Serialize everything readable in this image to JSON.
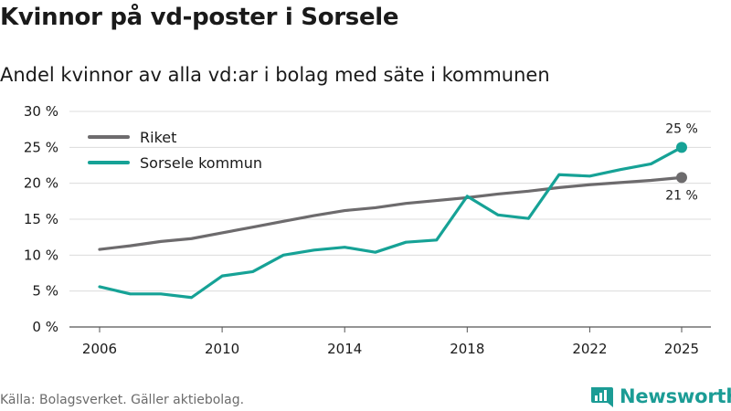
{
  "title": "Kvinnor på vd-poster i Sorsele",
  "subtitle": "Andel kvinnor av alla vd:ar i bolag med säte i kommunen",
  "source": "Källa: Bolagsverket. Gäller aktiebolag.",
  "brand": "Newsworthy",
  "colors": {
    "riket": "#6d6b6d",
    "sorsele": "#16a296",
    "grid": "#dcdcdc",
    "brand": "#1b9c95"
  },
  "chart_data": {
    "type": "line",
    "x": [
      2006,
      2007,
      2008,
      2009,
      2010,
      2011,
      2012,
      2013,
      2014,
      2015,
      2016,
      2017,
      2018,
      2019,
      2020,
      2021,
      2022,
      2023,
      2024,
      2025
    ],
    "series": [
      {
        "name": "Riket",
        "values": [
          10.8,
          11.3,
          11.9,
          12.3,
          13.1,
          13.9,
          14.7,
          15.5,
          16.2,
          16.6,
          17.2,
          17.6,
          18.0,
          18.5,
          18.9,
          19.4,
          19.8,
          20.1,
          20.4,
          20.8
        ]
      },
      {
        "name": "Sorsele kommun",
        "values": [
          5.6,
          4.6,
          4.6,
          4.1,
          7.1,
          7.7,
          10.0,
          10.7,
          11.1,
          10.4,
          11.8,
          12.1,
          18.2,
          15.6,
          15.1,
          21.2,
          21.0,
          21.9,
          22.7,
          25.0
        ]
      }
    ],
    "xticks": [
      "2006",
      "2010",
      "2014",
      "2018",
      "2022",
      "2025"
    ],
    "yticks": [
      "0 %",
      "5 %",
      "10 %",
      "15 %",
      "20 %",
      "25 %",
      "30 %"
    ],
    "ylim": [
      0,
      30
    ],
    "legend": [
      "Riket",
      "Sorsele kommun"
    ],
    "legend_position": "top-left",
    "end_labels": {
      "sorsele": "25 %",
      "riket": "21 %"
    }
  }
}
